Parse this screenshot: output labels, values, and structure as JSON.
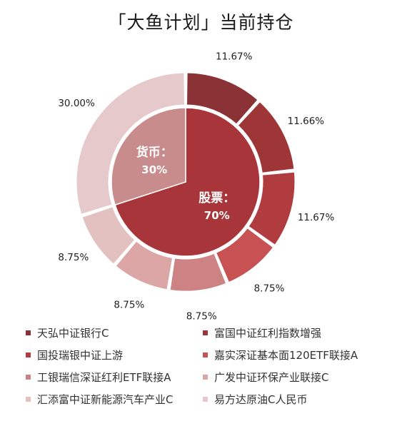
{
  "title": "「大鱼计划」当前持仓",
  "chart_data": {
    "type": "pie",
    "subtype": "nested-donut",
    "title": "「大鱼计划」当前持仓",
    "inner": [
      {
        "name": "股票",
        "label": "股票：",
        "value_label": "70%",
        "value": 70,
        "color": "#A8353A"
      },
      {
        "name": "货币",
        "label": "货币：",
        "value_label": "30%",
        "value": 30,
        "color": "#C98C8C"
      }
    ],
    "outer": [
      {
        "name": "天弘中证银行C",
        "value": 11.67,
        "label": "11.67%",
        "color": "#8B3236"
      },
      {
        "name": "富国中证红利指数增强",
        "value": 11.66,
        "label": "11.66%",
        "color": "#9E3638"
      },
      {
        "name": "国投瑞银中证上游",
        "value": 11.67,
        "label": "11.67%",
        "color": "#B03C40"
      },
      {
        "name": "嘉实深证基本面120ETF联接A",
        "value": 8.75,
        "label": "8.75%",
        "color": "#C85253"
      },
      {
        "name": "工银瑞信深证红利ETF联接A",
        "value": 8.75,
        "label": "8.75%",
        "color": "#CD8383"
      },
      {
        "name": "广发中证环保产业联接C",
        "value": 8.75,
        "label": "8.75%",
        "color": "#DDA6A6"
      },
      {
        "name": "汇添富中证新能源汽车产业C",
        "value": 8.75,
        "label": "8.75%",
        "color": "#E3C1C1"
      },
      {
        "name": "易方达原油C人民币",
        "value": 30.0,
        "label": "30.00%",
        "color": "#E6C9CB"
      }
    ],
    "legend_position": "bottom"
  }
}
